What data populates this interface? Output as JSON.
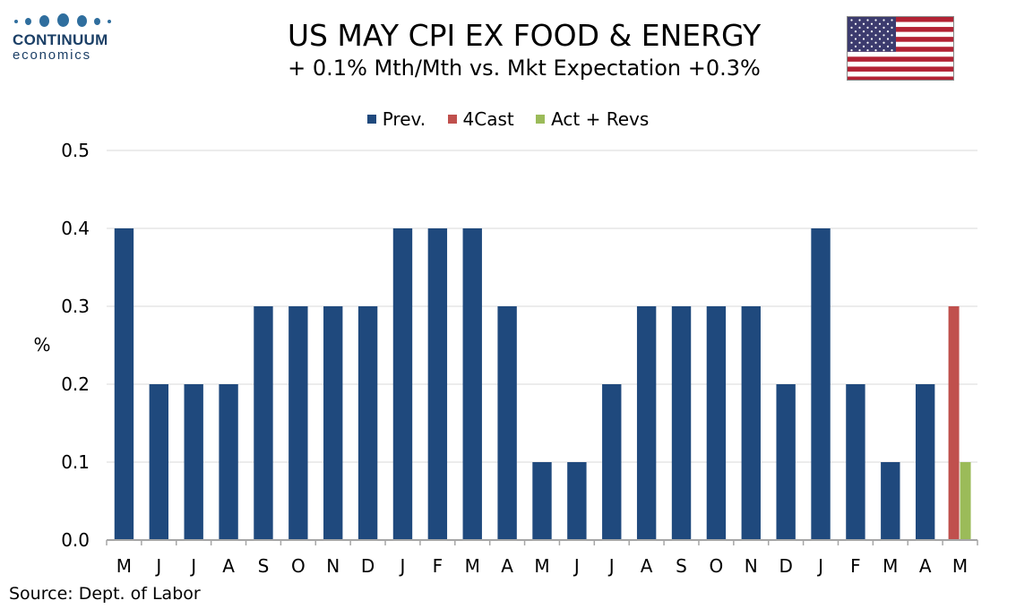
{
  "logo": {
    "word": "CONTINUUM",
    "sub": "economics"
  },
  "header": {
    "title": "US MAY CPI EX FOOD & ENERGY",
    "subtitle": "+ 0.1% Mth/Mth  vs. Mkt Expectation +0.3%"
  },
  "flag": {
    "name": "us-flag",
    "colors": {
      "red": "#b22234",
      "white": "#ffffff",
      "blue": "#3c3b6e"
    }
  },
  "source": "Source: Dept. of Labor",
  "colors": {
    "prev": "#1f497d",
    "forecast": "#c0504d",
    "actual": "#9bbb59",
    "grid": "#d9d9d9",
    "axis": "#a6a6a6"
  },
  "chart_data": {
    "type": "bar",
    "title": "US MAY CPI EX FOOD & ENERGY",
    "ylabel": "%",
    "xlabel": "",
    "ylim": [
      0,
      0.5
    ],
    "yticks": [
      "0.0",
      "0.1",
      "0.2",
      "0.3",
      "0.4",
      "0.5"
    ],
    "grid": true,
    "legend_position": "top-center",
    "categories": [
      "M",
      "J",
      "J",
      "A",
      "S",
      "O",
      "N",
      "D",
      "J",
      "F",
      "M",
      "A",
      "M",
      "J",
      "J",
      "A",
      "S",
      "O",
      "N",
      "D",
      "J",
      "F",
      "M",
      "A",
      "M"
    ],
    "series": [
      {
        "name": "Prev.",
        "values": [
          0.4,
          0.2,
          0.2,
          0.2,
          0.3,
          0.3,
          0.3,
          0.3,
          0.4,
          0.4,
          0.4,
          0.3,
          0.1,
          0.1,
          0.2,
          0.3,
          0.3,
          0.3,
          0.3,
          0.2,
          0.4,
          0.2,
          0.1,
          0.2,
          null
        ]
      },
      {
        "name": "4Cast",
        "values": [
          null,
          null,
          null,
          null,
          null,
          null,
          null,
          null,
          null,
          null,
          null,
          null,
          null,
          null,
          null,
          null,
          null,
          null,
          null,
          null,
          null,
          null,
          null,
          null,
          0.3
        ]
      },
      {
        "name": "Act + Revs",
        "values": [
          null,
          null,
          null,
          null,
          null,
          null,
          null,
          null,
          null,
          null,
          null,
          null,
          null,
          null,
          null,
          null,
          null,
          null,
          null,
          null,
          null,
          null,
          null,
          null,
          0.1
        ]
      }
    ]
  }
}
